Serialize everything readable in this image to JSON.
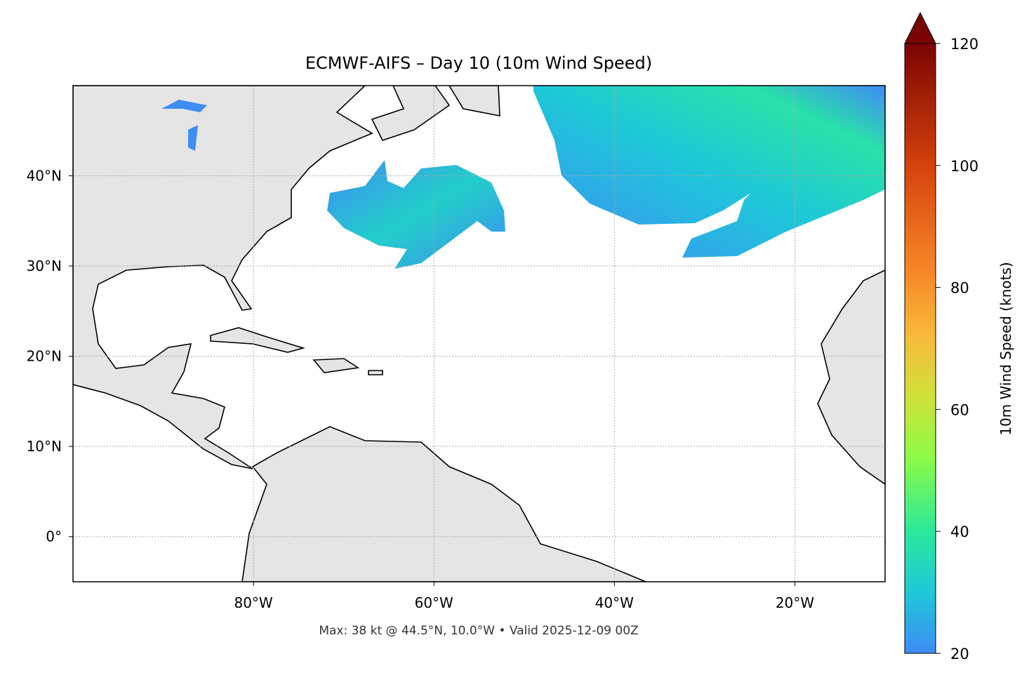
{
  "chart_data": {
    "type": "map",
    "title": "ECMWF-AIFS – Day 10 (10m Wind Speed)",
    "footer": "Max: 38 kt @ 44.5°N, 10.0°W • Valid 2025-12-09 00Z",
    "xlim": [
      -100,
      -10
    ],
    "ylim": [
      -5,
      50
    ],
    "xticks": [
      {
        "value": -80,
        "label": "80°W"
      },
      {
        "value": -60,
        "label": "60°W"
      },
      {
        "value": -40,
        "label": "40°W"
      },
      {
        "value": -20,
        "label": "20°W"
      }
    ],
    "yticks": [
      {
        "value": 0,
        "label": "0°"
      },
      {
        "value": 10,
        "label": "10°N"
      },
      {
        "value": 20,
        "label": "20°N"
      },
      {
        "value": 30,
        "label": "30°N"
      },
      {
        "value": 40,
        "label": "40°N"
      }
    ],
    "grid": true,
    "colorbar": {
      "label": "10m Wind Speed (knots)",
      "clim": [
        20,
        120
      ],
      "ticks": [
        20,
        40,
        60,
        80,
        100,
        120
      ]
    }
  }
}
